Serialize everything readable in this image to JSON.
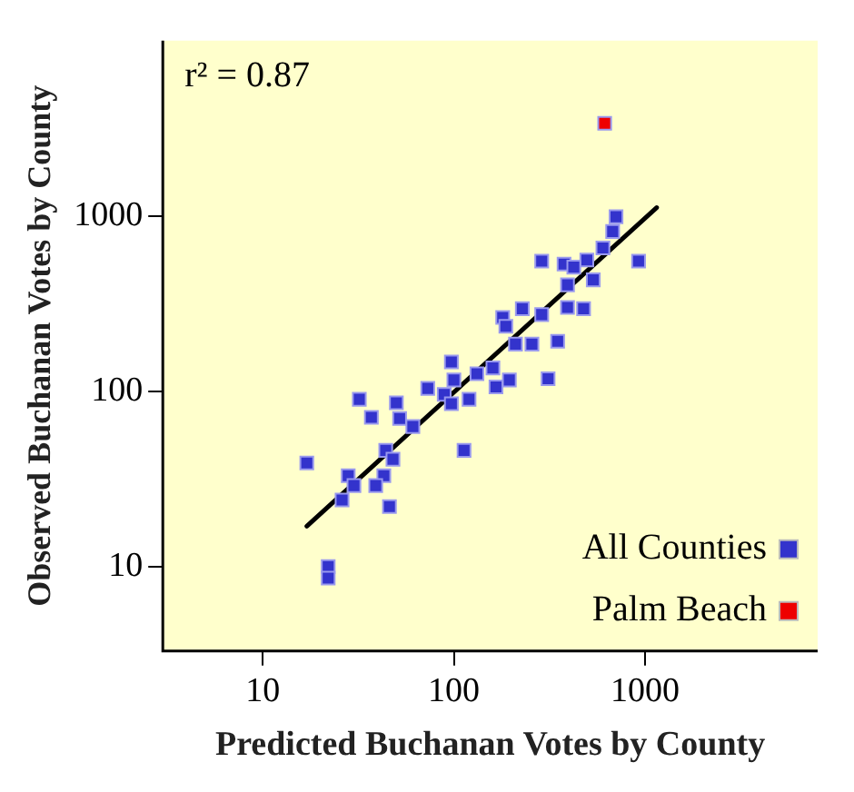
{
  "chart_data": {
    "type": "scatter",
    "xlabel": "Predicted Buchanan Votes by County",
    "ylabel": "Observed Buchanan Votes by County",
    "annotations": [
      "r² = 0.87"
    ],
    "log": "xy",
    "xlim": [
      3,
      8000
    ],
    "ylim": [
      3.3,
      10000
    ],
    "xticks": [
      10,
      100,
      1000
    ],
    "yticks": [
      10,
      100,
      1000
    ],
    "grid": false,
    "legend": "bottom right",
    "marker": "square",
    "series": [
      {
        "name": "All Counties",
        "color": "#3333cc",
        "x": [
          705,
          677,
          602,
          925,
          288,
          377,
          496,
          424,
          536,
          393,
          393,
          477,
          228,
          180,
          187,
          288,
          256,
          210,
          349,
          311,
          195,
          166,
          160,
          132,
          97,
          100,
          73,
          89,
          97,
          120,
          32,
          37,
          50,
          52,
          61,
          113,
          44,
          48,
          43,
          17,
          28,
          30,
          26,
          39,
          46,
          22,
          22
        ],
        "values": [
          990,
          816,
          657,
          553,
          553,
          532,
          561,
          511,
          432,
          405,
          301,
          296,
          296,
          264,
          235,
          274,
          186,
          186,
          193,
          118,
          116,
          106,
          136,
          126,
          147,
          116,
          104,
          96,
          85,
          90,
          90,
          71,
          86,
          70,
          63,
          46,
          46,
          41,
          33,
          39,
          33,
          29,
          24,
          29,
          22,
          10,
          8.6
        ]
      },
      {
        "name": "Palm Beach",
        "color": "#ee0000",
        "x": [
          615
        ],
        "values": [
          3380
        ]
      },
      {
        "type": "line",
        "color": "#000000",
        "marker": "none",
        "x": [
          17,
          1150
        ],
        "values": [
          17,
          1117
        ]
      }
    ]
  }
}
